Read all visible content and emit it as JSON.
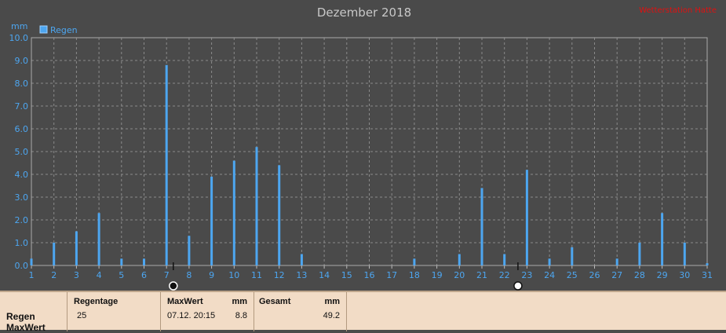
{
  "page": {
    "title": "Dezember 2018",
    "watermark": "Wetterstation Hatte",
    "unit_label": "mm"
  },
  "chart_data": {
    "type": "bar",
    "title": "Dezember 2018",
    "ylabel": "mm",
    "xlabel": "",
    "ylim": [
      0,
      10
    ],
    "yticks": [
      "0.0",
      "1.0",
      "2.0",
      "3.0",
      "4.0",
      "5.0",
      "6.0",
      "7.0",
      "8.0",
      "9.0",
      "10.0"
    ],
    "categories": [
      "1",
      "2",
      "3",
      "4",
      "5",
      "6",
      "7",
      "8",
      "9",
      "10",
      "11",
      "12",
      "13",
      "14",
      "15",
      "16",
      "17",
      "18",
      "19",
      "20",
      "21",
      "22",
      "23",
      "24",
      "25",
      "26",
      "27",
      "28",
      "29",
      "30",
      "31"
    ],
    "series": [
      {
        "name": "Regen",
        "color": "#4da6f0",
        "points": [
          {
            "x": 1,
            "y": 0.3
          },
          {
            "x": 2,
            "y": 1.0
          },
          {
            "x": 3,
            "y": 1.5
          },
          {
            "x": 4,
            "y": 2.3
          },
          {
            "x": 5,
            "y": 0.3
          },
          {
            "x": 6,
            "y": 0.3
          },
          {
            "x": 7,
            "y": 8.8
          },
          {
            "x": 8,
            "y": 1.3
          },
          {
            "x": 9,
            "y": 3.9
          },
          {
            "x": 10,
            "y": 4.6
          },
          {
            "x": 11,
            "y": 5.2
          },
          {
            "x": 12,
            "y": 4.4
          },
          {
            "x": 13,
            "y": 0.5
          },
          {
            "x": 18,
            "y": 0.3
          },
          {
            "x": 20,
            "y": 0.5
          },
          {
            "x": 21,
            "y": 3.4
          },
          {
            "x": 22,
            "y": 0.5
          },
          {
            "x": 23,
            "y": 4.2
          },
          {
            "x": 24,
            "y": 0.3
          },
          {
            "x": 25,
            "y": 0.8
          },
          {
            "x": 27,
            "y": 0.3
          },
          {
            "x": 28,
            "y": 1.0
          },
          {
            "x": 29,
            "y": 2.3
          },
          {
            "x": 30,
            "y": 1.0
          },
          {
            "x": 31,
            "y": 0.1
          }
        ]
      }
    ],
    "grid": true,
    "legend": "top-left",
    "moon_markers": [
      {
        "day": 7.3,
        "icon": "new-moon-icon"
      },
      {
        "day": 22.6,
        "icon": "full-moon-icon"
      }
    ]
  },
  "footer": {
    "row_labels": [
      "Regen",
      "MaxWert"
    ],
    "columns": [
      {
        "header": "Regentage",
        "unit": "",
        "value": "25",
        "value2": ""
      },
      {
        "header": "MaxWert",
        "unit": "mm",
        "value": "07.12.  20:15",
        "value2": "8.8"
      },
      {
        "header": "Gesamt",
        "unit": "mm",
        "value": "",
        "value2": "49.2"
      }
    ]
  }
}
